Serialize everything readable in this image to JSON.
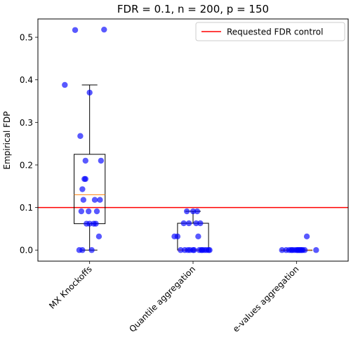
{
  "chart_data": {
    "type": "box",
    "title": "FDR = 0.1, n = 200, p = 150",
    "xlabel": "",
    "ylabel": "Empirical FDP",
    "ylim": [
      -0.026,
      0.543
    ],
    "yticks": [
      0.0,
      0.1,
      0.2,
      0.3,
      0.4,
      0.5
    ],
    "ytick_labels": [
      "0.0",
      "0.1",
      "0.2",
      "0.3",
      "0.4",
      "0.5"
    ],
    "categories": [
      "MX Knockoffs",
      "Quantile aggregation",
      "e-values aggregation"
    ],
    "boxes": [
      {
        "whislo": 0.0,
        "q1": 0.062,
        "med": 0.13,
        "q3": 0.225,
        "whishi": 0.388
      },
      {
        "whislo": 0.0,
        "q1": 0.0,
        "med": 0.0,
        "q3": 0.063,
        "whishi": 0.091
      },
      {
        "whislo": 0.0,
        "q1": 0.0,
        "med": 0.0,
        "q3": 0.0,
        "whishi": 0.0
      }
    ],
    "points": [
      {
        "category": "MX Knockoffs",
        "jitter": [
          -0.14,
          0.14,
          -0.24,
          0.0,
          -0.09,
          -0.04,
          0.11,
          -0.04,
          -0.05,
          0.1,
          -0.06,
          -0.07,
          0.05,
          -0.01,
          -0.08,
          0.07,
          0.04,
          -0.03,
          0.06,
          0.0,
          -0.1,
          0.02,
          -0.07,
          0.09
        ],
        "y": [
          0.517,
          0.518,
          0.388,
          0.37,
          0.268,
          0.21,
          0.21,
          0.167,
          0.167,
          0.118,
          0.118,
          0.143,
          0.118,
          0.091,
          0.091,
          0.091,
          0.062,
          0.062,
          0.062,
          0.062,
          0.0,
          0.0,
          0.0,
          0.032
        ]
      },
      {
        "category": "Quantile aggregation",
        "jitter": [
          -0.06,
          0.0,
          0.04,
          -0.09,
          -0.04,
          0.07,
          0.03,
          -0.18,
          -0.15,
          0.05,
          -0.12,
          -0.08,
          -0.03,
          0.01,
          0.06,
          0.13,
          0.16,
          0.09,
          0.11,
          0.15,
          -0.05,
          0.0,
          0.08
        ],
        "y": [
          0.091,
          0.091,
          0.091,
          0.063,
          0.063,
          0.063,
          0.063,
          0.032,
          0.032,
          0.032,
          0.0,
          0.0,
          0.0,
          0.0,
          0.0,
          0.0,
          0.0,
          0.0,
          0.0,
          0.0,
          0.0,
          0.0,
          0.0
        ]
      },
      {
        "category": "e-values aggregation",
        "jitter": [
          0.1,
          -0.14,
          -0.07,
          -0.04,
          -0.02,
          0.0,
          0.02,
          0.04,
          0.06,
          0.08,
          -0.1,
          0.01,
          0.03,
          -0.05,
          0.05,
          0.19
        ],
        "y": [
          0.032,
          0.0,
          0.0,
          0.0,
          0.0,
          0.0,
          0.0,
          0.0,
          0.0,
          0.0,
          0.0,
          0.0,
          0.0,
          0.0,
          0.0,
          0.0
        ]
      }
    ],
    "reference_line": {
      "y": 0.1,
      "label": "Requested FDR control",
      "color": "#ff0000"
    },
    "legend": {
      "position": "top-right",
      "entries": [
        "Requested FDR control"
      ]
    },
    "grid": false,
    "colors": {
      "points": "#0000ff",
      "box": "#000000",
      "median": "#ff7f0e",
      "reference": "#ff0000"
    }
  }
}
